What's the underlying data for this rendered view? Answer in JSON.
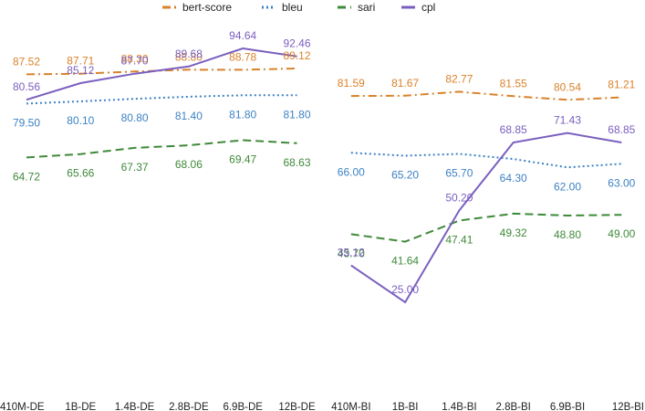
{
  "chart_data": {
    "type": "line",
    "title": "",
    "xlabel": "",
    "ylabel": "",
    "grid": false,
    "legend_position": "top",
    "ylim": [
      20,
      100
    ],
    "categories": [
      "410M-DE",
      "1B-DE",
      "1.4B-DE",
      "2.8B-DE",
      "6.9B-DE",
      "12B-DE",
      "410M-BI",
      "1B-BI",
      "1.4B-BI",
      "2.8B-BI",
      "6.9B-BI",
      "12B-BI"
    ],
    "groups": [
      {
        "name": "DE",
        "start": 0,
        "end": 6
      },
      {
        "name": "BI",
        "start": 6,
        "end": 12
      }
    ],
    "series": [
      {
        "name": "bert-score",
        "color": "#d9822b",
        "dash": "dashdot",
        "label_side": "above",
        "values": [
          87.52,
          87.71,
          88.3,
          88.8,
          88.78,
          89.12,
          81.59,
          81.67,
          82.77,
          81.55,
          80.54,
          81.21
        ],
        "labels": [
          "87.52",
          "87.71",
          "88.30",
          "88.80",
          "88.78",
          "89.12",
          "81.59",
          "81.67",
          "82.77",
          "81.55",
          "80.54",
          "81.21"
        ]
      },
      {
        "name": "bleu",
        "color": "#3d82c4",
        "dash": "dotted",
        "label_side": "below",
        "values": [
          79.5,
          80.1,
          80.8,
          81.4,
          81.8,
          81.8,
          66.0,
          65.2,
          65.7,
          64.3,
          62.0,
          63.0
        ],
        "labels": [
          "79.50",
          "80.10",
          "80.80",
          "81.40",
          "81.80",
          "81.80",
          "66.00",
          "65.20",
          "65.70",
          "64.30",
          "62.00",
          "63.00"
        ]
      },
      {
        "name": "sari",
        "color": "#3f8a3a",
        "dash": "dashed",
        "label_side": "below",
        "values": [
          64.72,
          65.66,
          67.37,
          68.06,
          69.47,
          68.63,
          43.7,
          41.64,
          47.41,
          49.32,
          48.8,
          49.0
        ],
        "labels": [
          "64.72",
          "65.66",
          "67.37",
          "68.06",
          "69.47",
          "68.63",
          "43.70",
          "41.64",
          "47.41",
          "49.32",
          "48.80",
          "49.00"
        ]
      },
      {
        "name": "cpl",
        "color": "#7a5fbf",
        "dash": "solid",
        "label_side": "above",
        "values": [
          80.56,
          85.12,
          87.7,
          89.68,
          94.64,
          92.46,
          35.12,
          25.0,
          50.2,
          68.85,
          71.43,
          68.85
        ],
        "labels": [
          "80.56",
          "85.12",
          "87.70",
          "89.68",
          "94.64",
          "92.46",
          "35.12",
          "25.00",
          "50.20",
          "68.85",
          "71.43",
          "68.85"
        ]
      }
    ]
  }
}
